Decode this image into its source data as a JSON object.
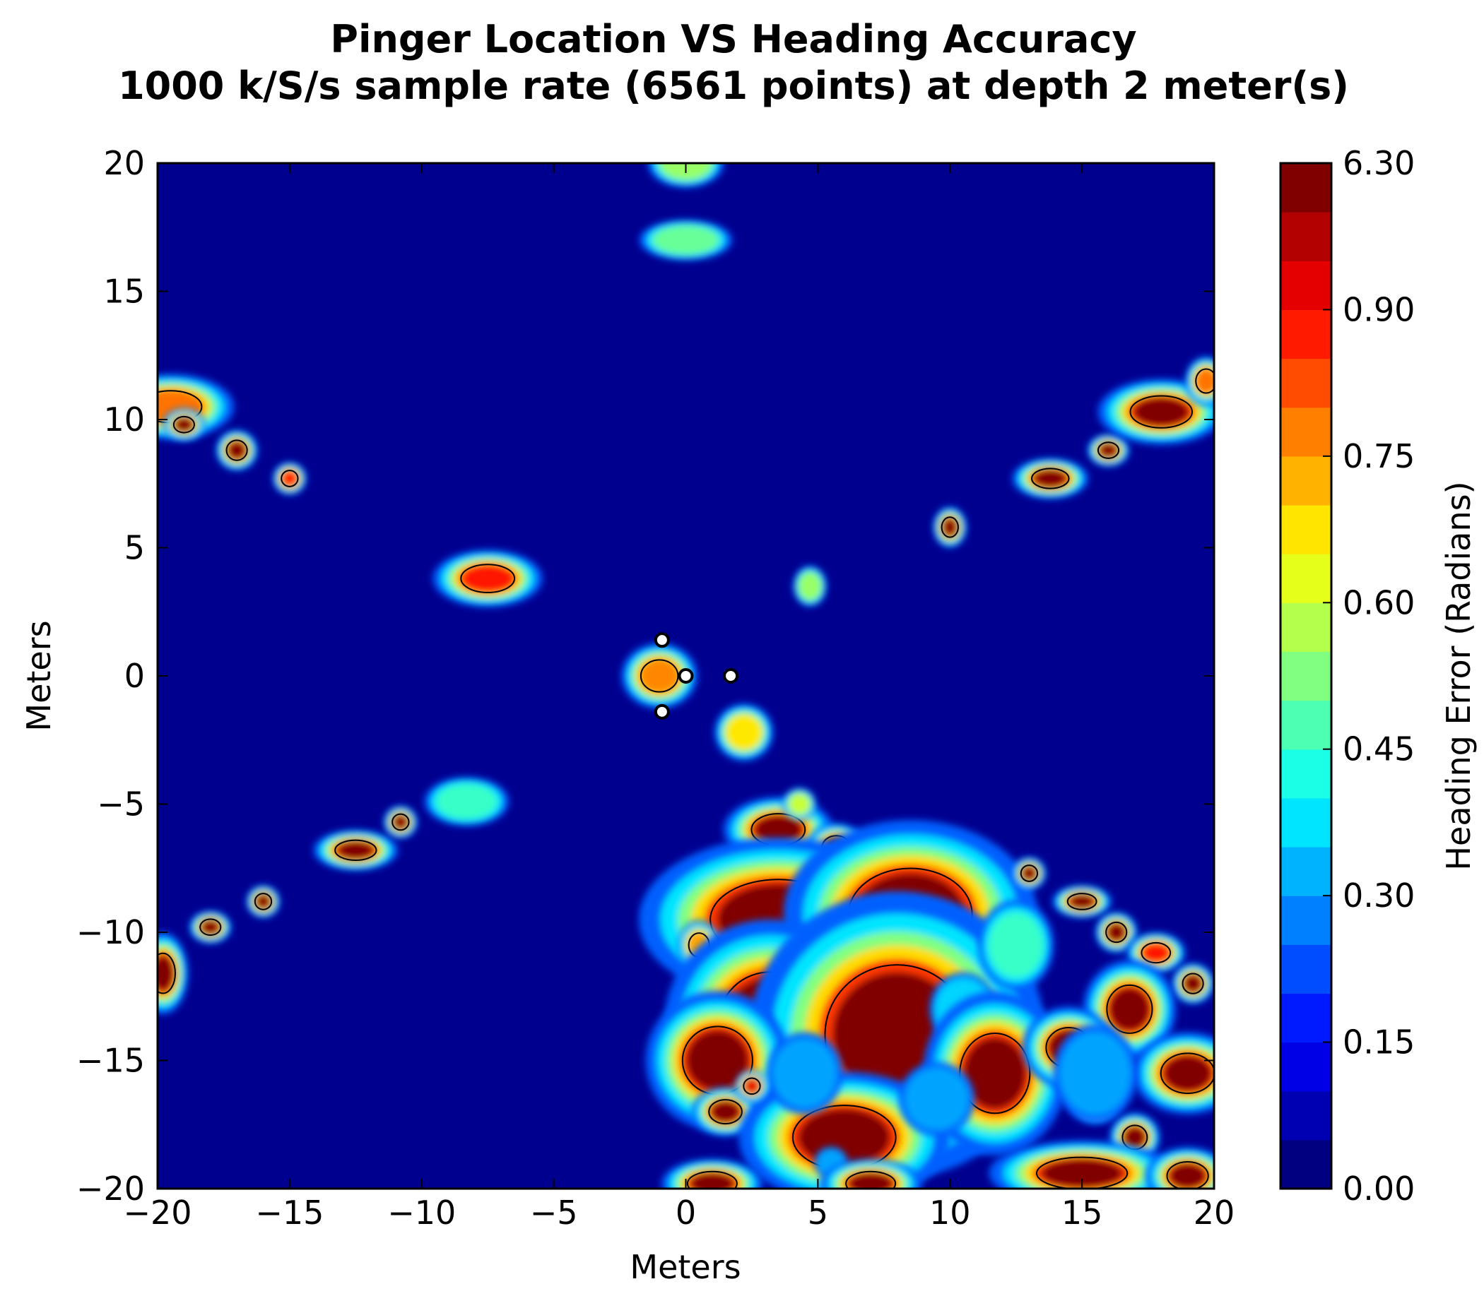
{
  "chart_data": {
    "type": "heatmap",
    "title": "Pinger Location VS Heading Accuracy",
    "subtitle": "1000 k/S/s sample rate (6561 points) at depth 2 meter(s)",
    "xlabel": "Meters",
    "ylabel": "Meters",
    "xlim": [
      -20,
      20
    ],
    "ylim": [
      -20,
      20
    ],
    "xticks": [
      -20,
      -15,
      -10,
      -5,
      0,
      5,
      10,
      15,
      20
    ],
    "yticks": [
      -20,
      -15,
      -10,
      -5,
      0,
      5,
      10,
      15,
      20
    ],
    "xtick_labels": [
      "−20",
      "−15",
      "−10",
      "−5",
      "0",
      "5",
      "10",
      "15",
      "20"
    ],
    "ytick_labels": [
      "−20",
      "−15",
      "−10",
      "−5",
      "0",
      "5",
      "10",
      "15",
      "20"
    ],
    "colorbar": {
      "label": "Heading Error (Radians)",
      "ticks": [
        0.0,
        0.15,
        0.3,
        0.45,
        0.6,
        0.75,
        0.9
      ],
      "tick_labels": [
        "0.00",
        "0.15",
        "0.30",
        "0.45",
        "0.60",
        "0.75",
        "0.90",
        "6.30"
      ],
      "top_value": 6.3,
      "colormap": "jet"
    },
    "hydrophones": [
      {
        "x": -0.9,
        "y": 1.4
      },
      {
        "x": 0.0,
        "y": 0.0
      },
      {
        "x": 1.7,
        "y": 0.0
      },
      {
        "x": -0.9,
        "y": -1.4
      }
    ],
    "blobs": [
      {
        "x": 0,
        "y": 20,
        "rx": 0.9,
        "ry": 0.6,
        "v": 0.55
      },
      {
        "x": 0,
        "y": 17,
        "rx": 1.1,
        "ry": 0.5,
        "v": 0.5
      },
      {
        "x": -19.5,
        "y": 10.5,
        "rx": 1.5,
        "ry": 0.8,
        "v": 0.8
      },
      {
        "x": -19,
        "y": 9.8,
        "rx": 0.5,
        "ry": 0.4,
        "v": 6.3
      },
      {
        "x": -17,
        "y": 8.8,
        "rx": 0.5,
        "ry": 0.5,
        "v": 6.3
      },
      {
        "x": -15,
        "y": 7.7,
        "rx": 0.4,
        "ry": 0.4,
        "v": 0.9
      },
      {
        "x": -7.5,
        "y": 3.8,
        "rx": 1.3,
        "ry": 0.7,
        "v": 0.9
      },
      {
        "x": 4.7,
        "y": 3.5,
        "rx": 0.4,
        "ry": 0.5,
        "v": 0.55
      },
      {
        "x": 10,
        "y": 5.8,
        "rx": 0.4,
        "ry": 0.5,
        "v": 6.3
      },
      {
        "x": 13.8,
        "y": 7.7,
        "rx": 0.9,
        "ry": 0.5,
        "v": 6.3
      },
      {
        "x": 16,
        "y": 8.8,
        "rx": 0.5,
        "ry": 0.4,
        "v": 6.3
      },
      {
        "x": 18,
        "y": 10.3,
        "rx": 1.5,
        "ry": 0.8,
        "v": 6.3
      },
      {
        "x": 19.7,
        "y": 11.5,
        "rx": 0.5,
        "ry": 0.6,
        "v": 0.8
      },
      {
        "x": -1,
        "y": 0,
        "rx": 0.9,
        "ry": 0.8,
        "v": 0.78
      },
      {
        "x": 2.2,
        "y": -2.2,
        "rx": 0.7,
        "ry": 0.7,
        "v": 0.68
      },
      {
        "x": -8.3,
        "y": -4.9,
        "rx": 1.0,
        "ry": 0.6,
        "v": 0.45
      },
      {
        "x": -12.5,
        "y": -6.8,
        "rx": 1.0,
        "ry": 0.5,
        "v": 6.3
      },
      {
        "x": -10.8,
        "y": -5.7,
        "rx": 0.4,
        "ry": 0.4,
        "v": 6.3
      },
      {
        "x": -16,
        "y": -8.8,
        "rx": 0.4,
        "ry": 0.4,
        "v": 6.3
      },
      {
        "x": -18,
        "y": -9.8,
        "rx": 0.5,
        "ry": 0.4,
        "v": 6.3
      },
      {
        "x": -19.8,
        "y": -11.6,
        "rx": 0.6,
        "ry": 1.0,
        "v": 6.3
      },
      {
        "x": 3.5,
        "y": -6,
        "rx": 1.3,
        "ry": 0.8,
        "v": 6.3
      },
      {
        "x": 5.7,
        "y": -6.7,
        "rx": 0.7,
        "ry": 0.6,
        "v": 6.3
      },
      {
        "x": 4.3,
        "y": -5,
        "rx": 0.4,
        "ry": 0.4,
        "v": 0.6
      },
      {
        "x": 3.5,
        "y": -9.5,
        "rx": 3.3,
        "ry": 2.0,
        "v": 6.3
      },
      {
        "x": 0.5,
        "y": -10.5,
        "rx": 0.5,
        "ry": 0.6,
        "v": 0.75
      },
      {
        "x": 8.5,
        "y": -9.3,
        "rx": 3.0,
        "ry": 2.3,
        "v": 6.3
      },
      {
        "x": 3.2,
        "y": -13.5,
        "rx": 2.5,
        "ry": 2.5,
        "v": 6.3
      },
      {
        "x": 8,
        "y": -14,
        "rx": 3.5,
        "ry": 3.5,
        "v": 6.3
      },
      {
        "x": 1.2,
        "y": -15,
        "rx": 1.7,
        "ry": 1.7,
        "v": 6.3
      },
      {
        "x": 1.5,
        "y": -17,
        "rx": 0.8,
        "ry": 0.6,
        "v": 6.3
      },
      {
        "x": 6,
        "y": -18,
        "rx": 2.5,
        "ry": 1.6,
        "v": 6.3
      },
      {
        "x": 4.5,
        "y": -15.5,
        "rx": 0.9,
        "ry": 1.0,
        "v": 0.3
      },
      {
        "x": 2.5,
        "y": -16,
        "rx": 0.4,
        "ry": 0.4,
        "v": 0.95
      },
      {
        "x": 10.5,
        "y": -13,
        "rx": 0.8,
        "ry": 0.9,
        "v": 0.35
      },
      {
        "x": 11.7,
        "y": -15.5,
        "rx": 1.7,
        "ry": 2.0,
        "v": 6.3
      },
      {
        "x": 9.5,
        "y": -16.5,
        "rx": 0.9,
        "ry": 0.9,
        "v": 0.3
      },
      {
        "x": 5.5,
        "y": -19,
        "rx": 0.4,
        "ry": 0.4,
        "v": 0.3
      },
      {
        "x": 1,
        "y": -19.8,
        "rx": 1.2,
        "ry": 0.6,
        "v": 6.3
      },
      {
        "x": 7,
        "y": -19.8,
        "rx": 1.2,
        "ry": 0.6,
        "v": 6.3
      },
      {
        "x": 13,
        "y": -7.7,
        "rx": 0.4,
        "ry": 0.4,
        "v": 6.3
      },
      {
        "x": 15,
        "y": -8.8,
        "rx": 0.7,
        "ry": 0.4,
        "v": 6.3
      },
      {
        "x": 16.3,
        "y": -10,
        "rx": 0.5,
        "ry": 0.5,
        "v": 6.3
      },
      {
        "x": 17.8,
        "y": -10.8,
        "rx": 0.7,
        "ry": 0.5,
        "v": 0.9
      },
      {
        "x": 19.2,
        "y": -12,
        "rx": 0.5,
        "ry": 0.5,
        "v": 6.3
      },
      {
        "x": 16.8,
        "y": -13,
        "rx": 1.1,
        "ry": 1.2,
        "v": 6.3
      },
      {
        "x": 14.5,
        "y": -14.5,
        "rx": 1.1,
        "ry": 1.0,
        "v": 6.3
      },
      {
        "x": 19,
        "y": -15.5,
        "rx": 1.3,
        "ry": 1.0,
        "v": 6.3
      },
      {
        "x": 15.5,
        "y": -16.5,
        "rx": 0.6,
        "ry": 0.6,
        "v": 6.3
      },
      {
        "x": 17,
        "y": -18,
        "rx": 0.6,
        "ry": 0.6,
        "v": 6.3
      },
      {
        "x": 15,
        "y": -19.4,
        "rx": 2.2,
        "ry": 0.8,
        "v": 6.3
      },
      {
        "x": 19,
        "y": -19.5,
        "rx": 1.0,
        "ry": 0.7,
        "v": 6.3
      },
      {
        "x": 12.5,
        "y": -10.5,
        "rx": 0.9,
        "ry": 1.1,
        "v": 0.45
      },
      {
        "x": 15.5,
        "y": -15.5,
        "rx": 1.0,
        "ry": 1.2,
        "v": 0.3
      }
    ]
  }
}
